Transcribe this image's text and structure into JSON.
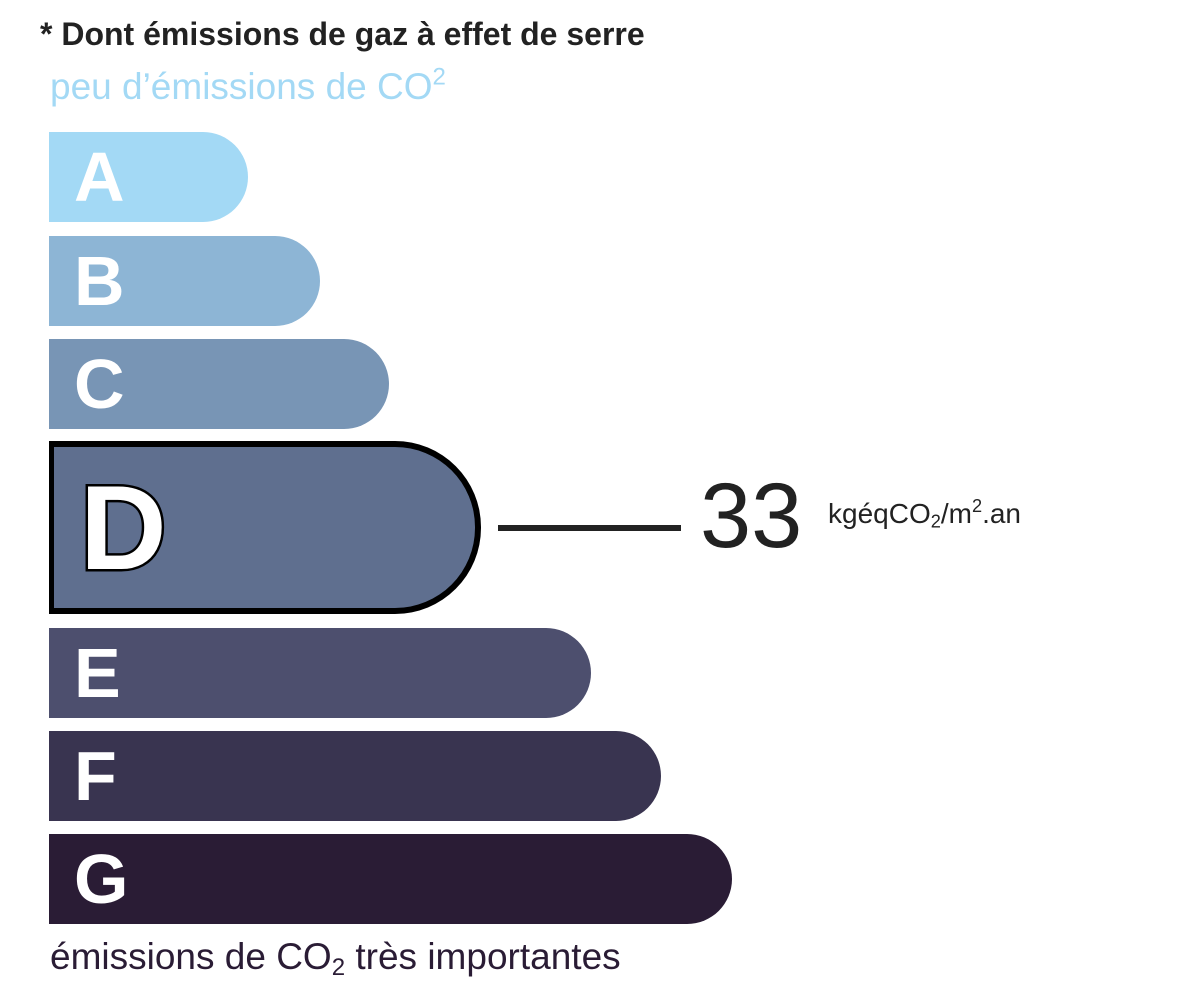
{
  "title": "* Dont émissions de gaz à effet de serre",
  "top_label": {
    "text": "peu d’émissions de CO",
    "sup": "2"
  },
  "bottom_label": {
    "text": "émissions de CO",
    "sub": "2",
    "rest": " très importantes"
  },
  "classes": [
    {
      "letter": "A",
      "color": "#a3d9f5"
    },
    {
      "letter": "B",
      "color": "#8db5d5"
    },
    {
      "letter": "C",
      "color": "#7895b5"
    },
    {
      "letter": "D",
      "color": "#5f6f8f"
    },
    {
      "letter": "E",
      "color": "#4d4f6e"
    },
    {
      "letter": "F",
      "color": "#393450"
    },
    {
      "letter": "G",
      "color": "#2a1c35"
    }
  ],
  "active_class": "D",
  "value": "33",
  "unit": {
    "a": "kgéqCO",
    "sub": "2",
    "b": "/m",
    "sup": "2",
    "c": ".an"
  }
}
